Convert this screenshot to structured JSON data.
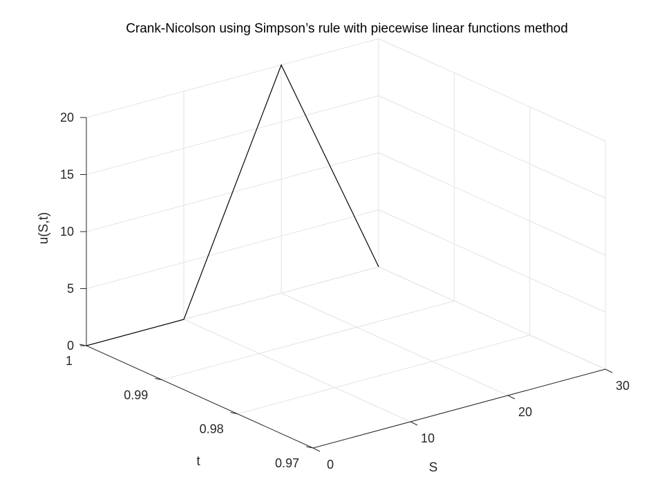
{
  "chart_data": {
    "type": "line",
    "title": "Crank-Nicolson using Simpson’s  rule  with piecewise linear functions method",
    "xlabel": "S",
    "ylabel": "t",
    "zlabel": "u(S,t)",
    "xlim": [
      0,
      30
    ],
    "ylim": [
      0.97,
      1
    ],
    "zlim": [
      0,
      20
    ],
    "xticks": [
      "0",
      "10",
      "20",
      "30"
    ],
    "yticks": [
      "0.97",
      "0.98",
      "0.99",
      "1"
    ],
    "zticks": [
      "0",
      "5",
      "10",
      "15",
      "20"
    ],
    "grid": true,
    "line_color": "#000000",
    "series": [
      {
        "x": [
          0,
          10,
          20,
          30
        ],
        "y": [
          1,
          1,
          1,
          1
        ],
        "z": [
          0,
          0,
          20,
          0
        ]
      }
    ]
  }
}
